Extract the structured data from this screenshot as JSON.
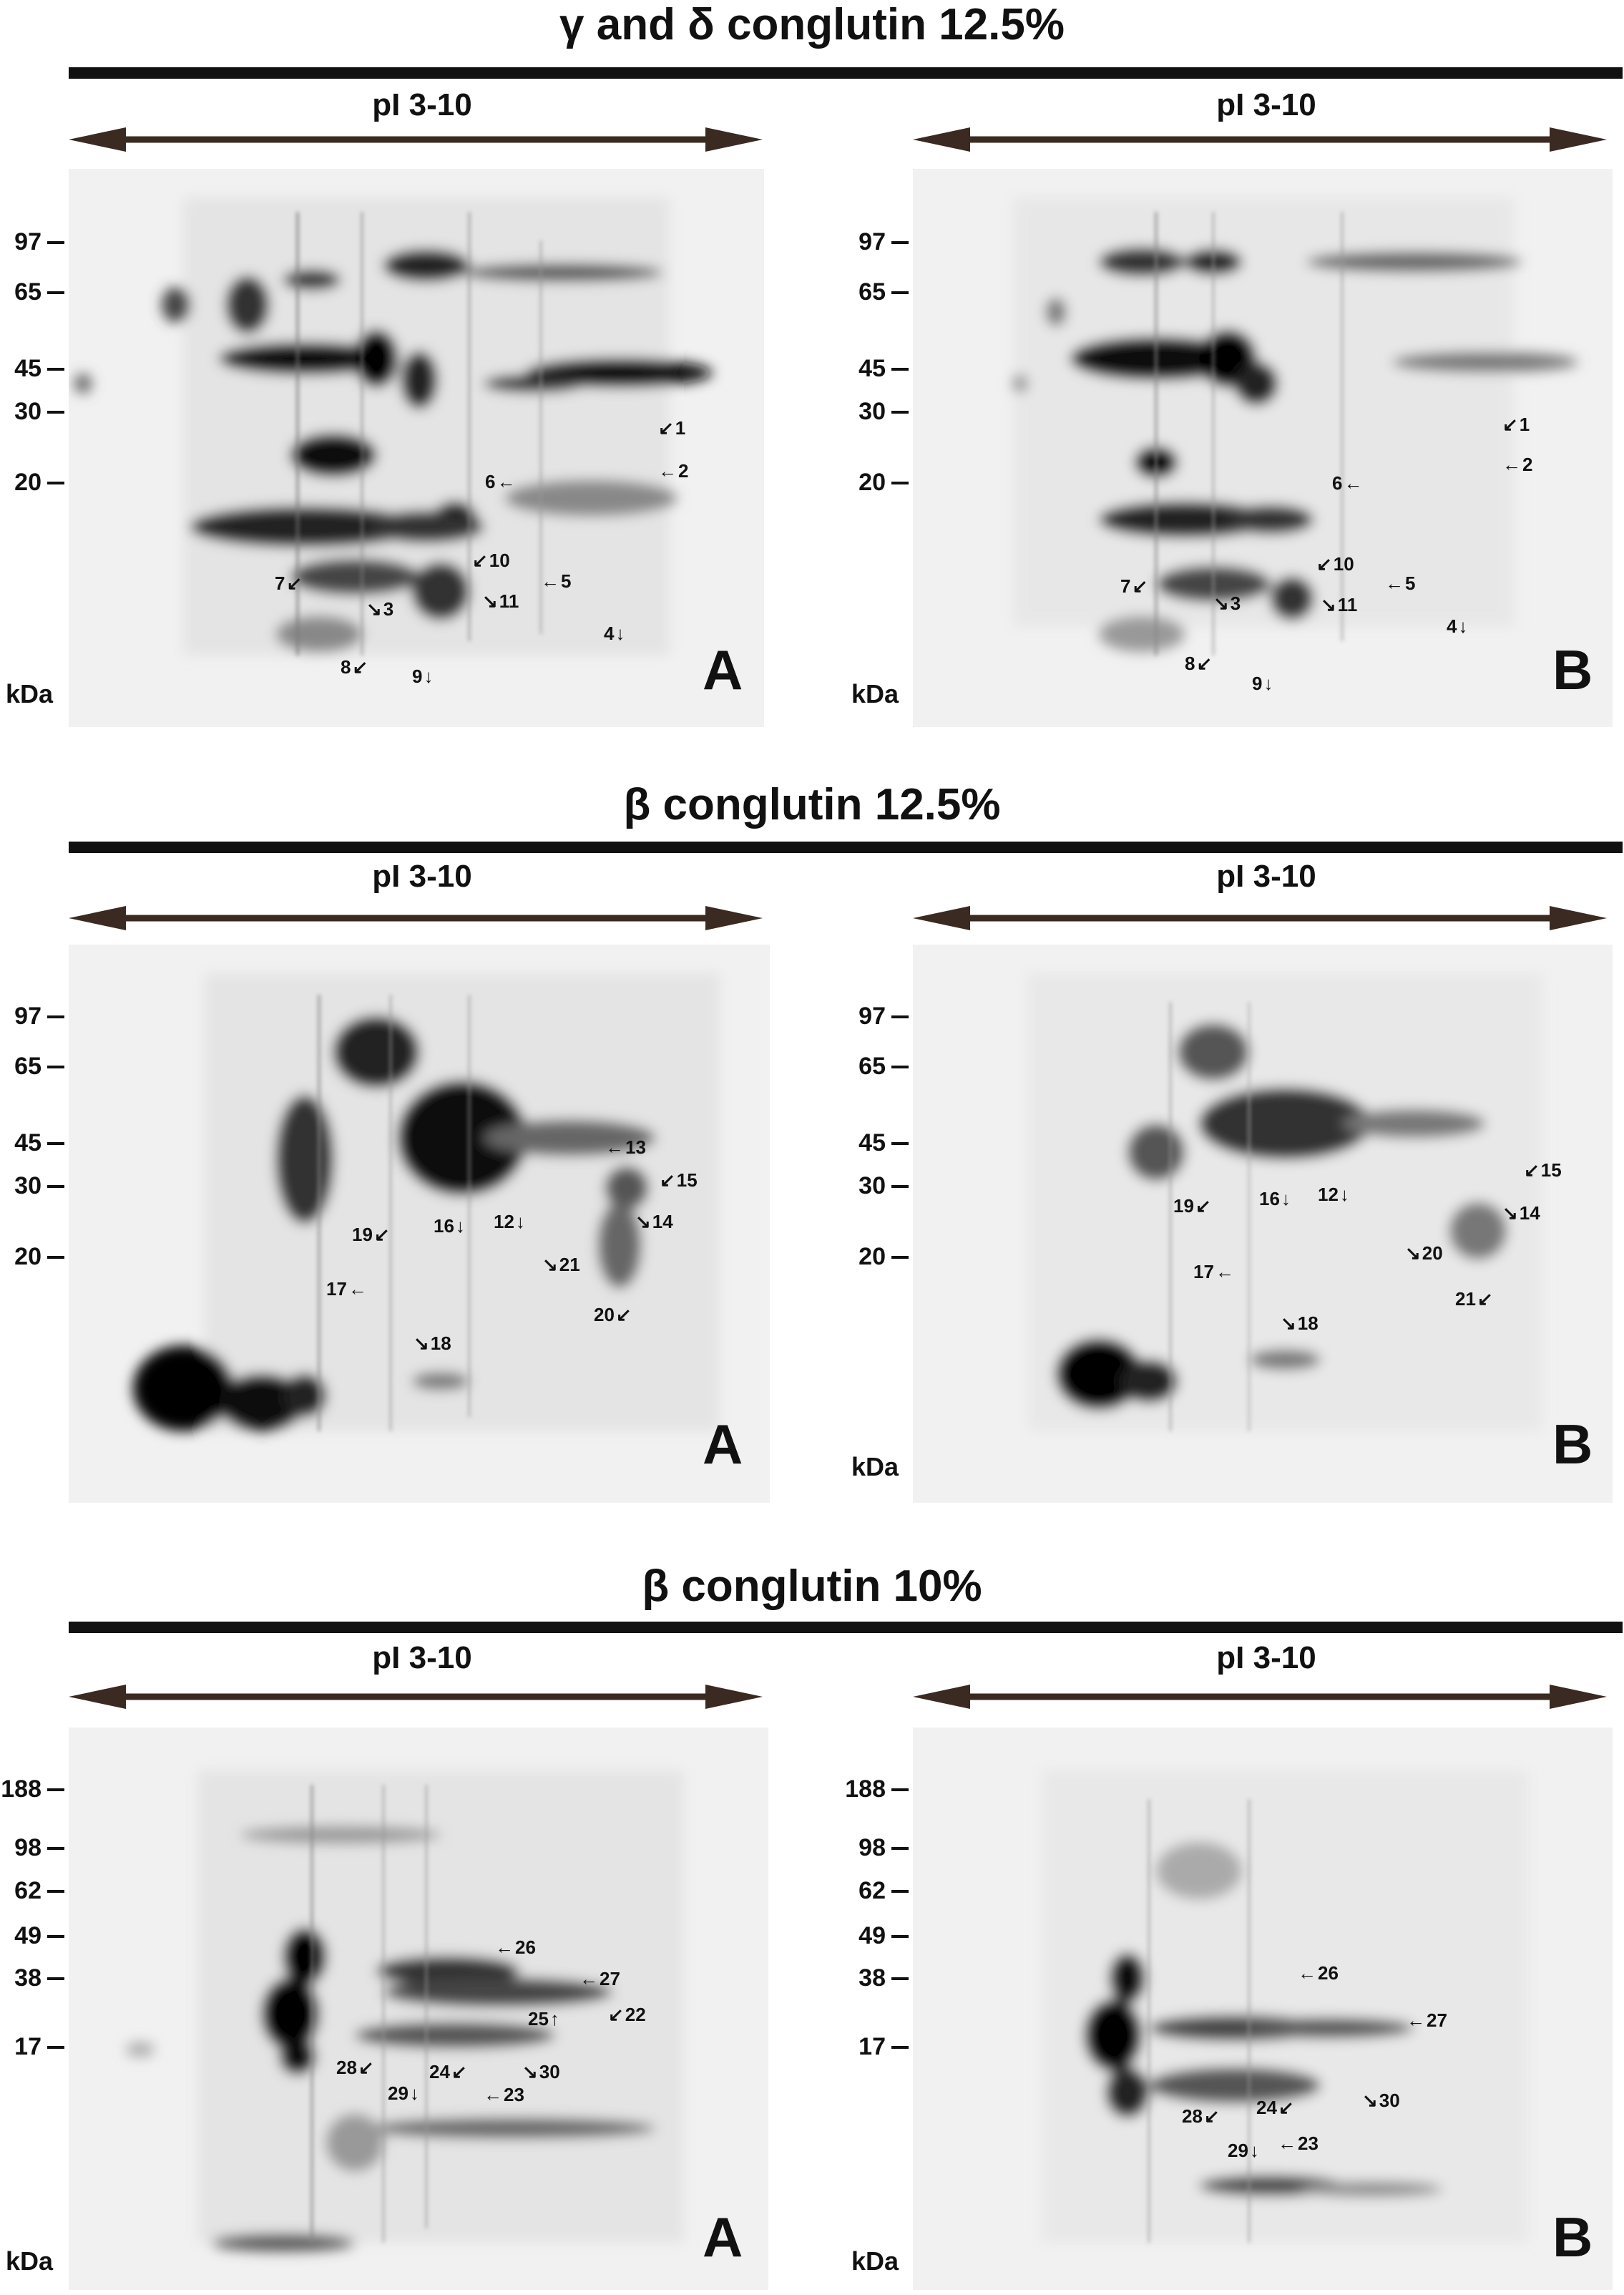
{
  "pi_label": "pI 3-10",
  "unit_label": "kDa",
  "sections": [
    {
      "title": "γ and δ conglutin 12.5%",
      "panels": [
        {
          "letter": "A",
          "ticks": [
            "97",
            "65",
            "45",
            "30",
            "20"
          ],
          "spots": [
            {
              "n": "1",
              "dir": "sw"
            },
            {
              "n": "2",
              "dir": "w"
            },
            {
              "n": "3",
              "dir": "nw"
            },
            {
              "n": "4",
              "dir": "n"
            },
            {
              "n": "5",
              "dir": "w"
            },
            {
              "n": "6",
              "dir": "e"
            },
            {
              "n": "7",
              "dir": "ne"
            },
            {
              "n": "8",
              "dir": "ne"
            },
            {
              "n": "9",
              "dir": "n"
            },
            {
              "n": "10",
              "dir": "sw"
            },
            {
              "n": "11",
              "dir": "nw"
            }
          ]
        },
        {
          "letter": "B",
          "ticks": [
            "97",
            "65",
            "45",
            "30",
            "20"
          ],
          "spots": [
            {
              "n": "1",
              "dir": "sw"
            },
            {
              "n": "2",
              "dir": "w"
            },
            {
              "n": "3",
              "dir": "nw"
            },
            {
              "n": "4",
              "dir": "n"
            },
            {
              "n": "5",
              "dir": "w"
            },
            {
              "n": "6",
              "dir": "e"
            },
            {
              "n": "7",
              "dir": "ne"
            },
            {
              "n": "8",
              "dir": "ne"
            },
            {
              "n": "9",
              "dir": "n"
            },
            {
              "n": "10",
              "dir": "sw"
            },
            {
              "n": "11",
              "dir": "nw"
            }
          ]
        }
      ]
    },
    {
      "title": "β conglutin 12.5%",
      "panels": [
        {
          "letter": "A",
          "ticks": [
            "97",
            "65",
            "45",
            "30",
            "20"
          ],
          "spots": [
            {
              "n": "12",
              "dir": "n"
            },
            {
              "n": "13",
              "dir": "w"
            },
            {
              "n": "14",
              "dir": "nw"
            },
            {
              "n": "15",
              "dir": "sw"
            },
            {
              "n": "16",
              "dir": "n"
            },
            {
              "n": "17",
              "dir": "e"
            },
            {
              "n": "18",
              "dir": "nw"
            },
            {
              "n": "19",
              "dir": "ne"
            },
            {
              "n": "20",
              "dir": "ne"
            },
            {
              "n": "21",
              "dir": "nw"
            }
          ]
        },
        {
          "letter": "B",
          "ticks": [
            "97",
            "65",
            "45",
            "30",
            "20"
          ],
          "spots": [
            {
              "n": "12",
              "dir": "n"
            },
            {
              "n": "14",
              "dir": "nw"
            },
            {
              "n": "15",
              "dir": "sw"
            },
            {
              "n": "16",
              "dir": "n"
            },
            {
              "n": "17",
              "dir": "e"
            },
            {
              "n": "18",
              "dir": "nw"
            },
            {
              "n": "19",
              "dir": "ne"
            },
            {
              "n": "20",
              "dir": "nw"
            },
            {
              "n": "21",
              "dir": "ne"
            }
          ]
        }
      ]
    },
    {
      "title": "β conglutin 10%",
      "panels": [
        {
          "letter": "A",
          "ticks": [
            "188",
            "98",
            "62",
            "49",
            "38",
            "17"
          ],
          "spots": [
            {
              "n": "22",
              "dir": "sw"
            },
            {
              "n": "23",
              "dir": "w"
            },
            {
              "n": "24",
              "dir": "ne"
            },
            {
              "n": "25",
              "dir": "s"
            },
            {
              "n": "26",
              "dir": "w"
            },
            {
              "n": "27",
              "dir": "w"
            },
            {
              "n": "28",
              "dir": "ne"
            },
            {
              "n": "29",
              "dir": "n"
            },
            {
              "n": "30",
              "dir": "nw"
            }
          ]
        },
        {
          "letter": "B",
          "ticks": [
            "188",
            "98",
            "62",
            "49",
            "38",
            "17"
          ],
          "spots": [
            {
              "n": "23",
              "dir": "w"
            },
            {
              "n": "24",
              "dir": "ne"
            },
            {
              "n": "26",
              "dir": "w"
            },
            {
              "n": "27",
              "dir": "w"
            },
            {
              "n": "28",
              "dir": "ne"
            },
            {
              "n": "29",
              "dir": "n"
            },
            {
              "n": "30",
              "dir": "nw"
            }
          ]
        }
      ]
    }
  ]
}
